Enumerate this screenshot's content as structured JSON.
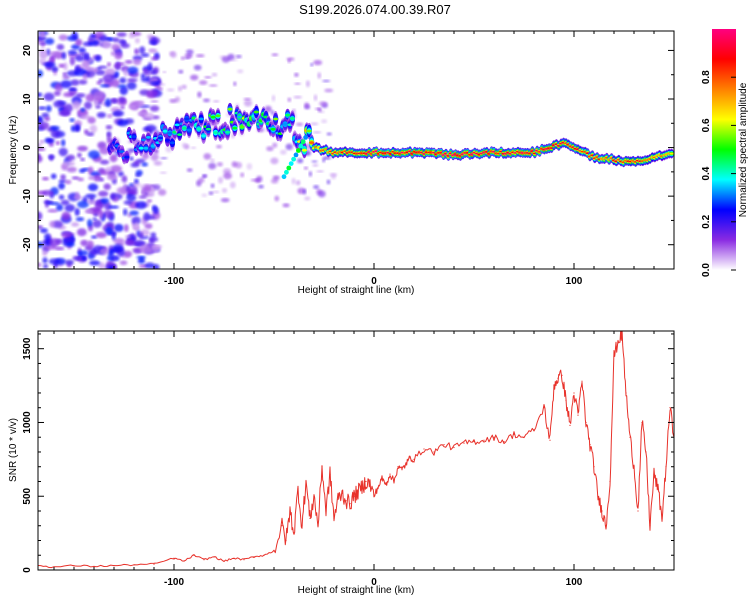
{
  "title": "S199.2026.074.00.39.R07",
  "chart_data": [
    {
      "type": "heatmap",
      "name": "spectrogram",
      "xlabel": "Height of straight line (km)",
      "ylabel": "Frequency (Hz)",
      "xlim": [
        -168,
        150
      ],
      "ylim": [
        -25,
        24
      ],
      "x_ticks": [
        -100,
        0,
        100
      ],
      "x_tick_labels": [
        "-100",
        "0",
        "100"
      ],
      "y_ticks": [
        -20,
        -10,
        0,
        10,
        20
      ],
      "y_tick_labels": [
        "-20",
        "-10",
        "0",
        "10",
        "20"
      ],
      "colorbar": {
        "label": "Normalized spectral amplitude",
        "range": [
          0,
          1
        ],
        "ticks": [
          0,
          0.2,
          0.4,
          0.6,
          0.8
        ],
        "tick_labels": [
          "0.0",
          "0.2",
          "0.4",
          "0.6",
          "0.8"
        ],
        "colors": [
          "#ffffff",
          "#8a2be2",
          "#0000ff",
          "#00ffff",
          "#00ff00",
          "#ffff00",
          "#ff8000",
          "#ff0000",
          "#ff0080"
        ]
      },
      "ridge": {
        "description_x": [
          -130,
          -115,
          -100,
          -85,
          -70,
          -60,
          -50,
          -40,
          -30,
          -20,
          0,
          20,
          40,
          60,
          80,
          95,
          110,
          120,
          130,
          140,
          150
        ],
        "frequency": [
          0,
          1,
          3,
          4,
          6,
          7,
          5,
          4,
          0,
          -1,
          -1,
          -1,
          -1.5,
          -1,
          -1,
          1,
          -2,
          -2.5,
          -3,
          -2,
          -1
        ],
        "amplitude": [
          0.25,
          0.3,
          0.35,
          0.4,
          0.45,
          0.5,
          0.45,
          0.4,
          0.7,
          0.8,
          0.9,
          0.9,
          0.95,
          0.9,
          0.9,
          0.85,
          0.8,
          0.8,
          0.85,
          0.75,
          0.7
        ]
      }
    },
    {
      "type": "line",
      "name": "snr",
      "xlabel": "Height of straight line (km)",
      "ylabel": "SNR (10 * v/v)",
      "xlim": [
        -168,
        150
      ],
      "ylim": [
        0,
        1620
      ],
      "x_ticks": [
        -100,
        0,
        100
      ],
      "x_tick_labels": [
        "-100",
        "0",
        "100"
      ],
      "y_ticks": [
        0,
        500,
        1000,
        1500
      ],
      "y_tick_labels": [
        "0",
        "500",
        "1000",
        "1500"
      ],
      "color": "#e8312a",
      "x": [
        -168,
        -160,
        -150,
        -140,
        -130,
        -120,
        -110,
        -100,
        -95,
        -90,
        -85,
        -80,
        -75,
        -70,
        -65,
        -60,
        -55,
        -50,
        -46,
        -44,
        -42,
        -40,
        -38,
        -36,
        -34,
        -32,
        -30,
        -28,
        -26,
        -24,
        -22,
        -20,
        -18,
        -16,
        -14,
        -12,
        -10,
        -8,
        -6,
        -4,
        -2,
        0,
        2,
        4,
        6,
        8,
        10,
        12,
        14,
        16,
        18,
        20,
        25,
        30,
        35,
        40,
        45,
        50,
        55,
        60,
        65,
        70,
        75,
        80,
        85,
        88,
        90,
        92,
        94,
        96,
        98,
        100,
        102,
        104,
        106,
        108,
        110,
        112,
        114,
        116,
        118,
        120,
        122,
        124,
        126,
        128,
        130,
        132,
        134,
        136,
        138,
        140,
        142,
        144,
        146,
        148,
        150
      ],
      "values": [
        30,
        20,
        30,
        25,
        30,
        35,
        40,
        80,
        60,
        100,
        70,
        90,
        60,
        80,
        70,
        90,
        100,
        130,
        300,
        200,
        400,
        250,
        550,
        300,
        600,
        350,
        500,
        300,
        700,
        400,
        650,
        350,
        480,
        520,
        470,
        450,
        500,
        530,
        560,
        600,
        580,
        500,
        560,
        620,
        580,
        650,
        600,
        700,
        680,
        720,
        760,
        750,
        820,
        800,
        850,
        830,
        860,
        870,
        880,
        900,
        870,
        920,
        900,
        950,
        1100,
        880,
        1250,
        1300,
        1320,
        1150,
        980,
        1200,
        1050,
        1280,
        1000,
        850,
        700,
        500,
        400,
        300,
        600,
        1450,
        1550,
        1600,
        1200,
        900,
        700,
        400,
        1000,
        800,
        300,
        650,
        550,
        350,
        700,
        1100,
        900
      ]
    }
  ]
}
